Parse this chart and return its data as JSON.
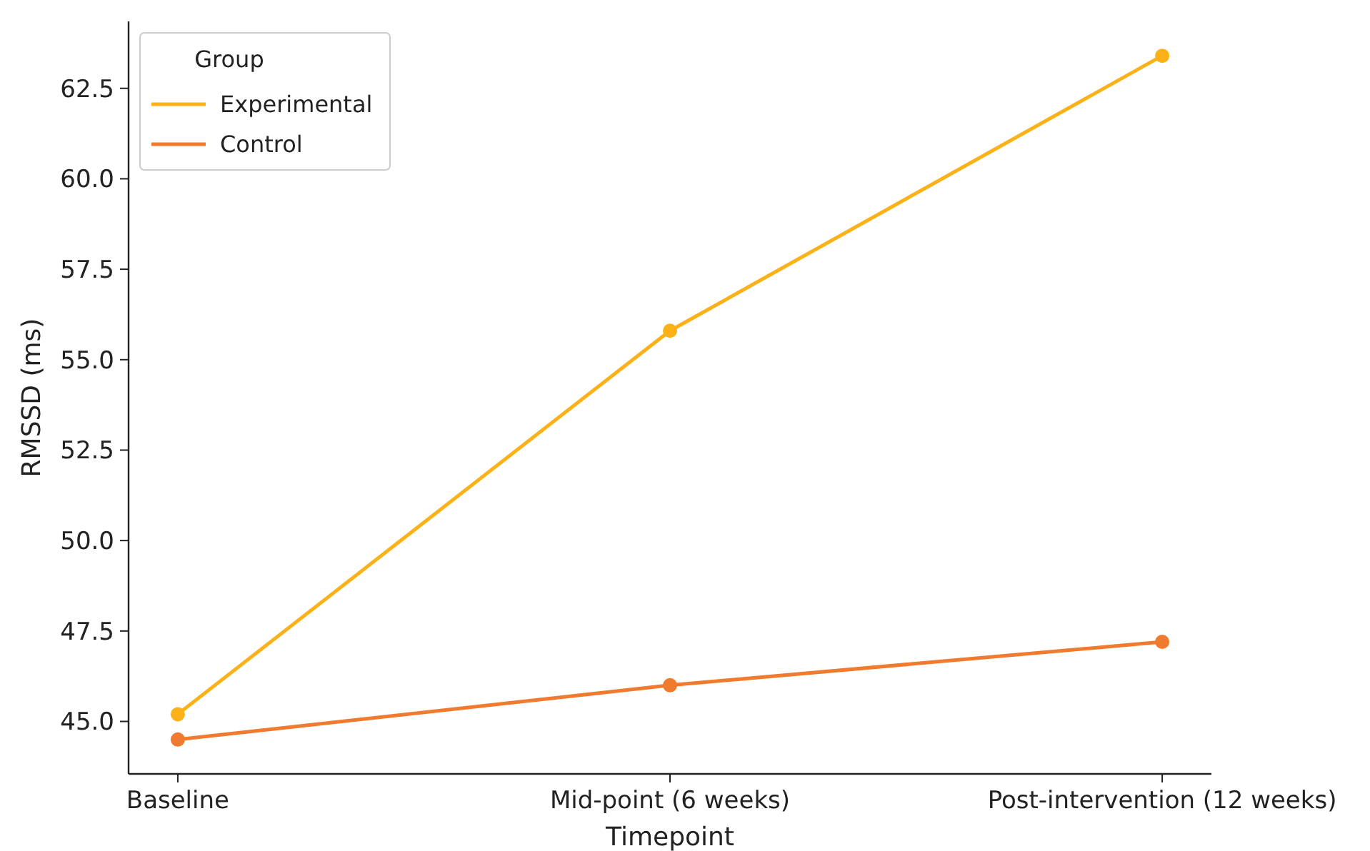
{
  "chart_data": {
    "type": "line",
    "xlabel": "Timepoint",
    "ylabel": "RMSSD (ms)",
    "categories": [
      "Baseline",
      "Mid-point (6 weeks)",
      "Post-intervention (12 weeks)"
    ],
    "series": [
      {
        "name": "Experimental",
        "color": "#fbb117",
        "values": [
          45.2,
          55.8,
          63.4
        ]
      },
      {
        "name": "Control",
        "color": "#f07a2e",
        "values": [
          44.5,
          46.0,
          47.2
        ]
      }
    ],
    "ylim": [
      43.55,
      64.35
    ],
    "yticks": [
      {
        "value": 45,
        "label": "45.0"
      },
      47.5,
      {
        "value": 50,
        "label": "50.0"
      },
      52.5,
      {
        "value": 55,
        "label": "55.0"
      },
      57.5,
      {
        "value": 60,
        "label": "60.0"
      },
      62.5
    ],
    "legend_title": "Group",
    "legend": "top left",
    "marker": "circle",
    "line_style": "solid",
    "grid": false
  }
}
